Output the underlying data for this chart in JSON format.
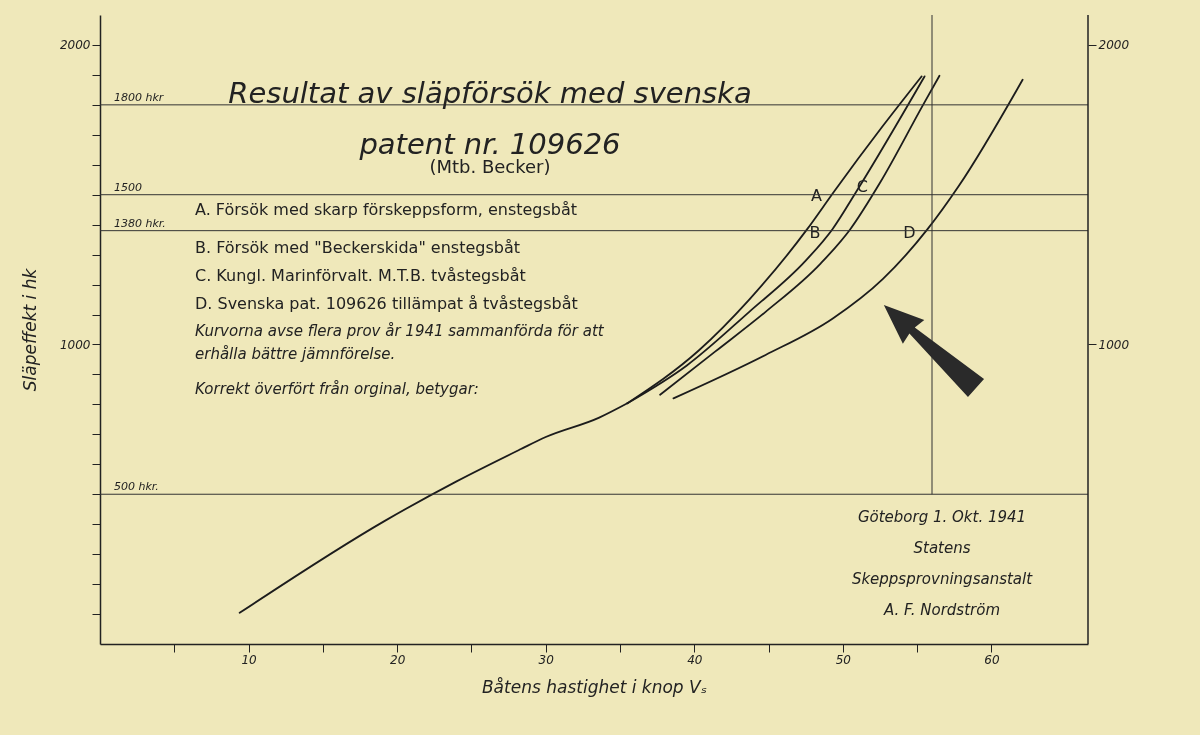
{
  "chart_data": {
    "type": "line",
    "title": "Resultat av släpförsök med svenska patent nr. 109626",
    "subtitle": "(Mtb. Becker)",
    "xlabel": "Båtens hastighet i knop Vₛ",
    "ylabel": "Släpeffekt i hk",
    "xlim": [
      0,
      66.5
    ],
    "xticks": [
      {
        "value": 5,
        "label": null
      },
      10,
      {
        "value": 15,
        "label": null
      },
      20,
      {
        "value": 25,
        "label": null
      },
      30,
      {
        "value": 35,
        "label": null
      },
      40,
      {
        "value": 45,
        "label": null
      },
      50,
      {
        "value": 55,
        "label": null
      },
      60
    ],
    "ylim": [
      0,
      2100
    ],
    "yticks": [
      {
        "value": 100,
        "label": null
      },
      {
        "value": 200,
        "label": null
      },
      {
        "value": 300,
        "label": null
      },
      {
        "value": 400,
        "label": null
      },
      {
        "value": 500,
        "label": null
      },
      {
        "value": 600,
        "label": null
      },
      {
        "value": 700,
        "label": null
      },
      {
        "value": 800,
        "label": null
      },
      {
        "value": 900,
        "label": null
      },
      1000,
      {
        "value": 1100,
        "label": null
      },
      {
        "value": 1200,
        "label": null
      },
      {
        "value": 1300,
        "label": null
      },
      {
        "value": 1400,
        "label": null
      },
      {
        "value": 1500,
        "label": null
      },
      {
        "value": 1600,
        "label": null
      },
      {
        "value": 1700,
        "label": null
      },
      {
        "value": 1800,
        "label": null
      },
      {
        "value": 1900,
        "label": null
      },
      2000
    ],
    "y2lim": [
      0,
      2100
    ],
    "y2ticks": [
      1000,
      2000
    ],
    "grid": false,
    "series": [
      {
        "color": "#1c1c1c",
        "x": [
          9.4,
          19.2,
          24.0,
          28.3,
          30.0,
          33.6,
          35.5
        ],
        "values": [
          104,
          412,
          543,
          650,
          691,
          756,
          804
        ]
      },
      {
        "name": "A",
        "color": "#1c1c1c",
        "x": [
          35.5,
          40.3,
          43.7,
          47.6,
          49.4,
          52.7,
          55.3
        ],
        "values": [
          804,
          980,
          1150,
          1385,
          1510,
          1730,
          1895
        ]
      },
      {
        "name": "B",
        "color": "#1c1c1c",
        "x": [
          35.5,
          39.5,
          43.7,
          47.5,
          49.3,
          50.9,
          55.5
        ],
        "values": [
          804,
          930,
          1109,
          1280,
          1385,
          1510,
          1895
        ]
      },
      {
        "name": "C",
        "color": "#1c1c1c",
        "x": [
          37.7,
          41.4,
          44.8,
          48.5,
          50.5,
          52.5,
          55.4,
          56.5
        ],
        "values": [
          832,
          976,
          1109,
          1270,
          1385,
          1540,
          1800,
          1897
        ]
      },
      {
        "name": "D",
        "color": "#1c1c1c",
        "x": [
          38.6,
          44.8,
          49.3,
          52.7,
          55.7,
          57.8,
          62.1
        ],
        "values": [
          820,
          965,
          1086,
          1219,
          1385,
          1529,
          1884
        ]
      }
    ],
    "ref_lines": [
      {
        "axis": "y",
        "value": 1800,
        "label": "1800 hkr"
      },
      {
        "axis": "y",
        "value": 1500,
        "label": "1500"
      },
      {
        "axis": "y",
        "value": 1380,
        "label": "1380 hkr."
      },
      {
        "axis": "y",
        "value": 500,
        "label": "500 hkr."
      },
      {
        "axis": "x",
        "value": 56,
        "label": null
      }
    ],
    "annotations": [
      "A. Försök med skarp förskeppsform, enstegsbåt",
      "B. Försök med \"Beckerskida\" enstegsbåt",
      "C. Kungl. Marinförvalt. M.T.B. tvåstegsbåt",
      "D. Svenska pat. 109626 tillämpat å tvåstegsbåt",
      "Kurvorna avse flera prov år 1941 sammanförda för att erhålla bättre jämnförelse.",
      "Korrekt överfört från orginal, betygar:",
      "Göteborg 1. Okt. 1941",
      "Statens",
      "Skeppsprovningsanstalt",
      "A. F. Nordström"
    ]
  }
}
